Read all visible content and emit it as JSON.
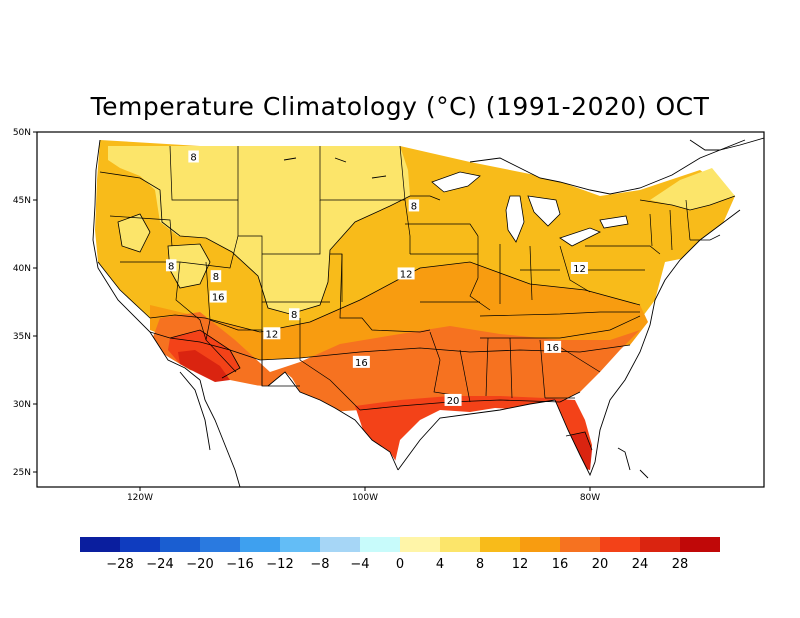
{
  "title": "Temperature Climatology (°C) (1991-2020) OCT",
  "lat_ticks": [
    "50N",
    "45N",
    "40N",
    "35N",
    "30N",
    "25N"
  ],
  "lon_ticks": [
    "120W",
    "100W",
    "80W"
  ],
  "contour_labels": [
    {
      "text": "8",
      "lon": -116.0,
      "lat": 48.2
    },
    {
      "text": "8",
      "lon": -96.3,
      "lat": 44.6
    },
    {
      "text": "8",
      "lon": -118.0,
      "lat": 40.2
    },
    {
      "text": "8",
      "lon": -114.0,
      "lat": 39.4
    },
    {
      "text": "8",
      "lon": -107.0,
      "lat": 36.6
    },
    {
      "text": "12",
      "lon": -97.0,
      "lat": 39.6
    },
    {
      "text": "12",
      "lon": -81.5,
      "lat": 40.0
    },
    {
      "text": "12",
      "lon": -109.0,
      "lat": 35.2
    },
    {
      "text": "16",
      "lon": -113.8,
      "lat": 37.9
    },
    {
      "text": "16",
      "lon": -101.0,
      "lat": 33.1
    },
    {
      "text": "16",
      "lon": -83.9,
      "lat": 34.2
    },
    {
      "text": "20",
      "lon": -92.8,
      "lat": 30.3
    }
  ],
  "colorbar": {
    "colors": [
      "#0a1e9e",
      "#0f3cbf",
      "#1a5ed1",
      "#2a7ae0",
      "#3ea0ef",
      "#63bdf6",
      "#a6d6f6",
      "#c8fbfb",
      "#fff5a8",
      "#fce56a",
      "#f8bb1a",
      "#f89c10",
      "#f67220",
      "#f34218",
      "#da2410",
      "#c00808"
    ],
    "labels": [
      "-28",
      "-24",
      "-20",
      "-16",
      "-12",
      "-8",
      "-4",
      "0",
      "4",
      "8",
      "12",
      "16",
      "20",
      "24",
      "28"
    ]
  }
}
